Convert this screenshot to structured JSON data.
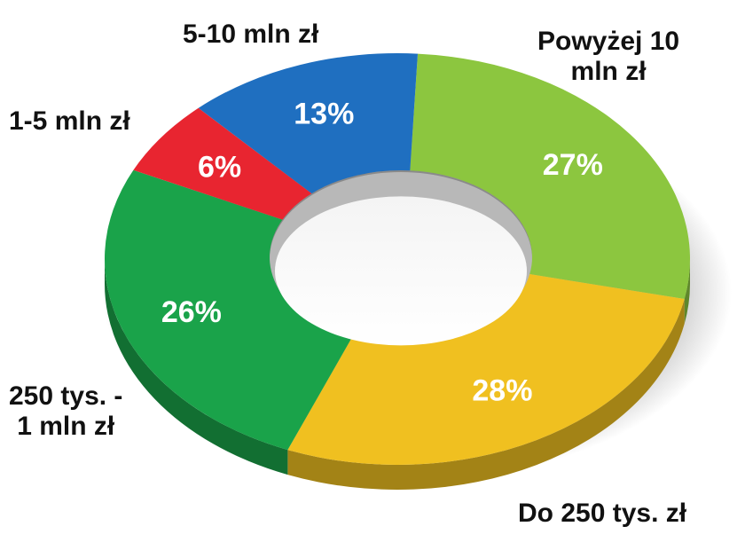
{
  "chart_data": {
    "type": "pie",
    "style": "3d-donut",
    "categories": [
      "Powyżej 10 mln zł",
      "Do 250 tys. zł",
      "250 tys. - 1 mln zł",
      "1-5 mln zł",
      "5-10 mln zł"
    ],
    "series": [
      {
        "values": [
          27,
          28,
          26,
          6,
          13
        ],
        "data_labels": [
          "27%",
          "28%",
          "26%",
          "6%",
          "13%"
        ],
        "colors": [
          "#8cc63f",
          "#f0c020",
          "#1aa34a",
          "#e82530",
          "#1f6fc0"
        ]
      }
    ],
    "legend": "none",
    "category_labels": {
      "powyzej_10_line1": "Powyżej 10",
      "powyzej_10_line2": "mln zł",
      "do_250": "Do 250 tys. zł",
      "250_1mln_line1": "250 tys. -",
      "250_1mln_line2": "1 mln zł",
      "1_5": "1-5 mln zł",
      "5_10": "5-10 mln zł"
    }
  }
}
